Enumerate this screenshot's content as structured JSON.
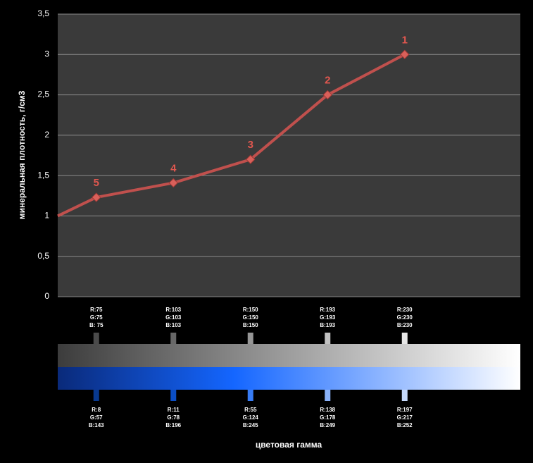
{
  "chart_data": {
    "type": "line",
    "y_label": "минеральная плотность, г/см3",
    "x_label": "цветовая гамма",
    "ylim": [
      0,
      3.5
    ],
    "yticks": [
      0,
      {
        "value": 0.5,
        "label": "0,5"
      },
      1,
      {
        "value": 1.5,
        "label": "1,5"
      },
      2,
      {
        "value": 2.5,
        "label": "2,5"
      },
      3,
      {
        "value": 3.5,
        "label": "3,5"
      }
    ],
    "grid": true,
    "series": [
      {
        "color": "#c0504d",
        "values": [
          1.0,
          1.23,
          1.41,
          1.7,
          2.5,
          3.0
        ],
        "point_labels": [
          null,
          "5",
          "4",
          "3",
          "2",
          "1"
        ]
      }
    ],
    "gray_swatches": [
      {
        "lines": [
          "R:75",
          "G:75",
          "B: 75"
        ],
        "color": "#4b4b4b"
      },
      {
        "lines": [
          "R:103",
          "G:103",
          "B:103"
        ],
        "color": "#676767"
      },
      {
        "lines": [
          "R:150",
          "G:150",
          "B:150"
        ],
        "color": "#969696"
      },
      {
        "lines": [
          "R:193",
          "G:193",
          "B:193"
        ],
        "color": "#c1c1c1"
      },
      {
        "lines": [
          "R:230",
          "G:230",
          "B:230"
        ],
        "color": "#e6e6e6"
      }
    ],
    "blue_swatches": [
      {
        "lines": [
          "R:8",
          "G:57",
          "B:143"
        ],
        "color": "#08398f"
      },
      {
        "lines": [
          "R:11",
          "G:78",
          "B:196"
        ],
        "color": "#0b4ec4"
      },
      {
        "lines": [
          "R:55",
          "G:124",
          "B:245"
        ],
        "color": "#377cf5"
      },
      {
        "lines": [
          "R:138",
          "G:178",
          "B:249"
        ],
        "color": "#8ab2f9"
      },
      {
        "lines": [
          "R:197",
          "G:217",
          "B:252"
        ],
        "color": "#c5d9fc"
      }
    ]
  }
}
